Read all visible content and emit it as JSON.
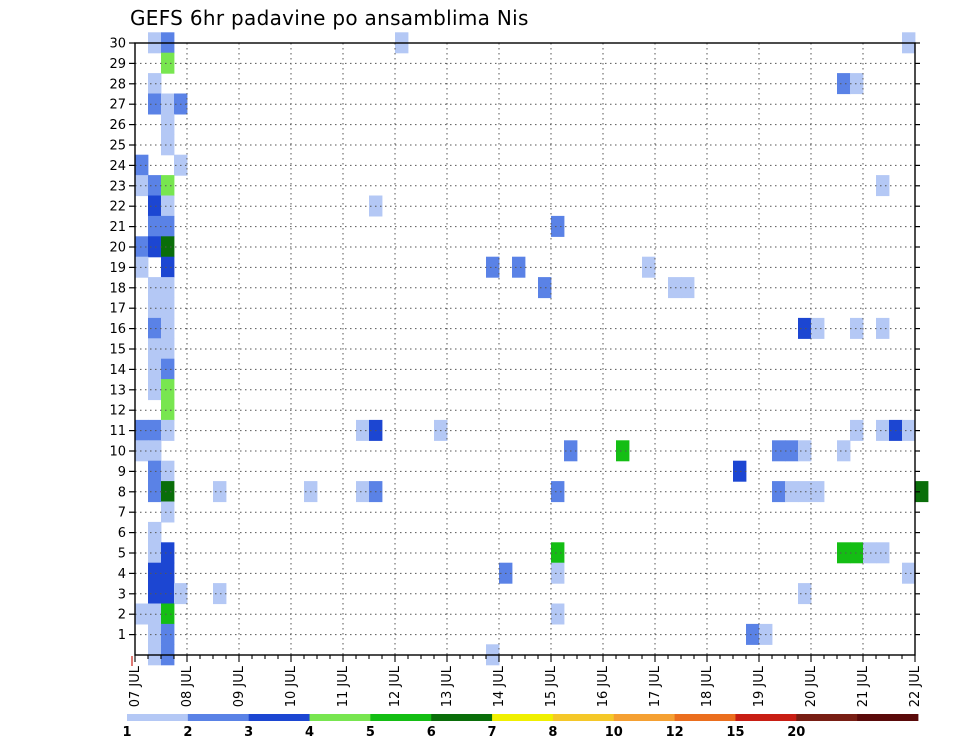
{
  "chart_data": {
    "type": "heatmap",
    "title": "GEFS 6hr padavine po ansamblima Nis",
    "x_tick_labels": [
      "07 JUL",
      "08 JUL",
      "09 JUL",
      "10 JUL",
      "11 JUL",
      "12 JUL",
      "13 JUL",
      "14 JUL",
      "15 JUL",
      "16 JUL",
      "17 JUL",
      "18 JUL",
      "19 JUL",
      "20 JUL",
      "21 JUL",
      "22 JUL"
    ],
    "y_tick_labels": [
      "1",
      "2",
      "3",
      "4",
      "5",
      "6",
      "7",
      "8",
      "9",
      "10",
      "11",
      "12",
      "13",
      "14",
      "15",
      "16",
      "17",
      "18",
      "19",
      "20",
      "21",
      "22",
      "23",
      "24",
      "25",
      "26",
      "27",
      "28",
      "29",
      "30"
    ],
    "x_range": [
      "07 JUL 00Z",
      "22 JUL 00Z"
    ],
    "x_step": "6hr",
    "y_range": [
      0,
      30
    ],
    "grid": true,
    "legend": "bottom",
    "levels": [
      "1",
      "2",
      "3",
      "4",
      "5",
      "6",
      "7",
      "8",
      "10",
      "12",
      "15",
      "20"
    ],
    "level_colors": [
      "#b4c8f5",
      "#5a82e6",
      "#1c46d2",
      "#78e650",
      "#14be14",
      "#0a6e0a",
      "#f0f000",
      "#f5c828",
      "#f5a032",
      "#eb6e1e",
      "#c81e14",
      "#781e14",
      "#5a0a0a"
    ],
    "cells_note": "each cell: [member(y), 6hr step index from 07 JUL 00Z, color class 0-12]",
    "cells": [
      [
        30,
        1,
        0
      ],
      [
        30,
        2,
        1
      ],
      [
        30,
        20,
        0
      ],
      [
        30,
        59,
        0
      ],
      [
        29,
        2,
        3
      ],
      [
        28,
        1,
        0
      ],
      [
        28,
        54,
        1
      ],
      [
        28,
        55,
        0
      ],
      [
        27,
        1,
        1
      ],
      [
        27,
        2,
        0
      ],
      [
        27,
        3,
        1
      ],
      [
        26,
        2,
        0
      ],
      [
        25,
        2,
        0
      ],
      [
        24,
        0,
        1
      ],
      [
        24,
        3,
        0
      ],
      [
        23,
        0,
        0
      ],
      [
        23,
        1,
        1
      ],
      [
        23,
        2,
        3
      ],
      [
        23,
        57,
        0
      ],
      [
        22,
        1,
        2
      ],
      [
        22,
        2,
        0
      ],
      [
        22,
        18,
        0
      ],
      [
        21,
        1,
        1
      ],
      [
        21,
        2,
        1
      ],
      [
        21,
        32,
        1
      ],
      [
        20,
        0,
        1
      ],
      [
        20,
        1,
        2
      ],
      [
        20,
        2,
        5
      ],
      [
        19,
        0,
        0
      ],
      [
        19,
        2,
        2
      ],
      [
        19,
        27,
        1
      ],
      [
        19,
        29,
        1
      ],
      [
        19,
        39,
        0
      ],
      [
        18,
        1,
        0
      ],
      [
        18,
        2,
        0
      ],
      [
        18,
        31,
        1
      ],
      [
        18,
        41,
        0
      ],
      [
        18,
        42,
        0
      ],
      [
        17,
        1,
        0
      ],
      [
        17,
        2,
        0
      ],
      [
        16,
        1,
        1
      ],
      [
        16,
        2,
        0
      ],
      [
        16,
        51,
        2
      ],
      [
        16,
        52,
        0
      ],
      [
        16,
        55,
        0
      ],
      [
        16,
        57,
        0
      ],
      [
        15,
        1,
        0
      ],
      [
        15,
        2,
        0
      ],
      [
        14,
        1,
        0
      ],
      [
        14,
        2,
        1
      ],
      [
        13,
        1,
        0
      ],
      [
        13,
        2,
        3
      ],
      [
        12,
        2,
        3
      ],
      [
        11,
        0,
        1
      ],
      [
        11,
        1,
        1
      ],
      [
        11,
        2,
        0
      ],
      [
        11,
        17,
        0
      ],
      [
        11,
        18,
        2
      ],
      [
        11,
        23,
        0
      ],
      [
        11,
        55,
        0
      ],
      [
        11,
        57,
        0
      ],
      [
        11,
        58,
        2
      ],
      [
        11,
        59,
        0
      ],
      [
        10,
        0,
        0
      ],
      [
        10,
        1,
        0
      ],
      [
        10,
        33,
        1
      ],
      [
        10,
        37,
        4
      ],
      [
        10,
        49,
        1
      ],
      [
        10,
        50,
        1
      ],
      [
        10,
        51,
        0
      ],
      [
        10,
        54,
        0
      ],
      [
        9,
        1,
        1
      ],
      [
        9,
        2,
        0
      ],
      [
        9,
        46,
        2
      ],
      [
        8,
        1,
        1
      ],
      [
        8,
        2,
        5
      ],
      [
        8,
        6,
        0
      ],
      [
        8,
        13,
        0
      ],
      [
        8,
        17,
        0
      ],
      [
        8,
        18,
        1
      ],
      [
        8,
        32,
        1
      ],
      [
        8,
        49,
        1
      ],
      [
        8,
        50,
        0
      ],
      [
        8,
        51,
        0
      ],
      [
        8,
        52,
        0
      ],
      [
        8,
        60,
        5
      ],
      [
        7,
        2,
        0
      ],
      [
        6,
        1,
        0
      ],
      [
        5,
        1,
        0
      ],
      [
        5,
        2,
        2
      ],
      [
        5,
        32,
        4
      ],
      [
        5,
        54,
        4
      ],
      [
        5,
        55,
        4
      ],
      [
        5,
        56,
        0
      ],
      [
        5,
        57,
        0
      ],
      [
        4,
        1,
        2
      ],
      [
        4,
        2,
        2
      ],
      [
        4,
        28,
        1
      ],
      [
        4,
        32,
        0
      ],
      [
        4,
        59,
        0
      ],
      [
        3,
        1,
        2
      ],
      [
        3,
        2,
        2
      ],
      [
        3,
        3,
        0
      ],
      [
        3,
        6,
        0
      ],
      [
        3,
        51,
        0
      ],
      [
        2,
        0,
        0
      ],
      [
        2,
        1,
        0
      ],
      [
        2,
        2,
        4
      ],
      [
        2,
        32,
        0
      ],
      [
        1,
        1,
        0
      ],
      [
        1,
        2,
        1
      ],
      [
        1,
        47,
        1
      ],
      [
        1,
        48,
        0
      ],
      [
        0,
        1,
        0
      ],
      [
        0,
        2,
        1
      ],
      [
        0,
        27,
        0
      ]
    ]
  }
}
